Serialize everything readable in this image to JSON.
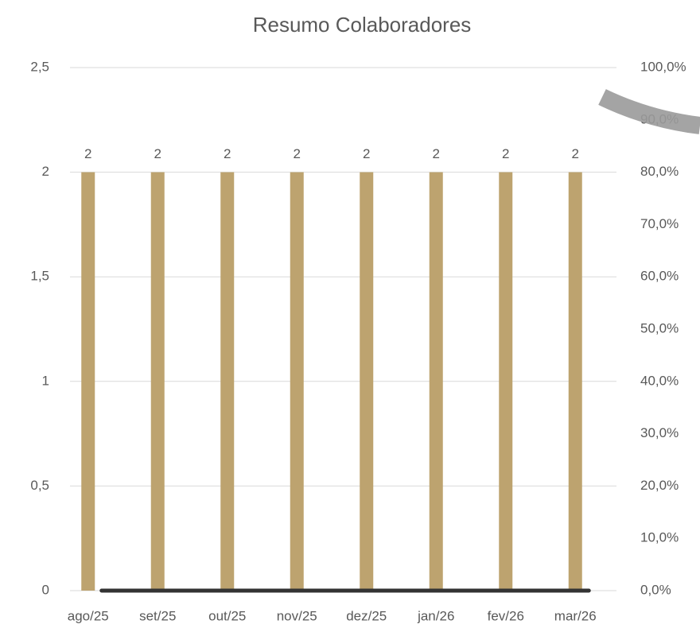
{
  "chart_data": {
    "type": "bar",
    "title": "Resumo Colaboradores",
    "categories": [
      "ago/25",
      "set/25",
      "out/25",
      "nov/25",
      "dez/25",
      "jan/26",
      "fev/26",
      "mar/26"
    ],
    "series": [
      {
        "type": "bar",
        "color": "#bda36f",
        "values": [
          2,
          2,
          2,
          2,
          2,
          2,
          2,
          2
        ]
      },
      {
        "type": "line",
        "color": "#333333",
        "axis": "y2",
        "values": [
          0,
          0,
          0,
          0,
          0,
          0,
          0,
          0
        ]
      }
    ],
    "ylim": [
      0,
      2.5
    ],
    "yticks": [
      0,
      {
        "value": 0.5,
        "label": "0,5"
      },
      1,
      {
        "value": 1.5,
        "label": "1,5"
      },
      2,
      {
        "value": 2.5,
        "label": "2,5"
      }
    ],
    "y2lim": [
      0,
      100
    ],
    "y2ticks": [
      {
        "value": 0,
        "label": "0,0%"
      },
      {
        "value": 10,
        "label": "10,0%"
      },
      {
        "value": 20,
        "label": "20,0%"
      },
      {
        "value": 30,
        "label": "30,0%"
      },
      {
        "value": 40,
        "label": "40,0%"
      },
      {
        "value": 50,
        "label": "50,0%"
      },
      {
        "value": 60,
        "label": "60,0%"
      },
      {
        "value": 70,
        "label": "70,0%"
      },
      {
        "value": 80,
        "label": "80,0%"
      },
      {
        "value": 90,
        "label": "90,0%"
      },
      {
        "value": 100,
        "label": "100,0%"
      }
    ],
    "grid": true
  }
}
